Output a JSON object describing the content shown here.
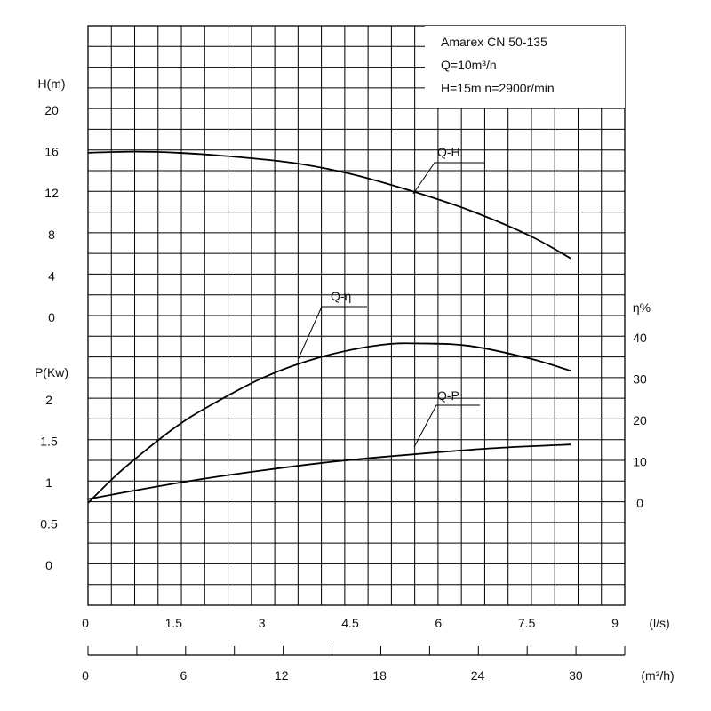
{
  "chart_data": {
    "type": "line",
    "title_lines": [
      "Amarex CN 50-135",
      "Q=10m³/h",
      "H=15m  n=2900r/min"
    ],
    "head_axis": {
      "label": "H(m)",
      "ticks": [
        "20",
        "16",
        "12",
        "8",
        "4",
        "0"
      ],
      "ylim": [
        0,
        20
      ]
    },
    "power_axis": {
      "label": "P(Kw)",
      "ticks": [
        "2",
        "1.5",
        "1",
        "0.5",
        "0"
      ],
      "ylim": [
        0,
        2
      ]
    },
    "eff_axis": {
      "label": "η%",
      "ticks": [
        "40",
        "30",
        "20",
        "10",
        "0"
      ],
      "ylim": [
        0,
        40
      ]
    },
    "x_axis_ls": {
      "unit": "(l/s)",
      "ticks": [
        "0",
        "1.5",
        "3",
        "4.5",
        "6",
        "7.5",
        "9"
      ],
      "xlim": [
        0,
        9
      ]
    },
    "x_axis_m3h": {
      "unit": "(m³/h)",
      "ticks": [
        "0",
        "6",
        "12",
        "18",
        "24",
        "30"
      ],
      "xlim": [
        0,
        32.4
      ]
    },
    "series": [
      {
        "name": "Q-H",
        "axis": "head",
        "x": [
          0,
          0.8,
          1.5,
          2.5,
          3.5,
          4.5,
          5.5,
          6.5,
          7.5,
          8.2
        ],
        "y": [
          15.9,
          16.0,
          15.9,
          15.5,
          14.9,
          13.8,
          12.2,
          10.3,
          7.9,
          5.7
        ]
      },
      {
        "name": "Q-η",
        "axis": "eff",
        "x": [
          0,
          0.5,
          1,
          1.5,
          2,
          3,
          4,
          5,
          5.7,
          6.5,
          7.5,
          8.2
        ],
        "y": [
          0,
          7,
          13,
          18.5,
          23,
          30.5,
          35.5,
          38.3,
          38.6,
          38,
          35,
          32
        ]
      },
      {
        "name": "Q-P",
        "axis": "power",
        "x": [
          0,
          1,
          2,
          3,
          4,
          5,
          6,
          7,
          8.2
        ],
        "y": [
          0.8,
          0.93,
          1.05,
          1.15,
          1.24,
          1.31,
          1.37,
          1.42,
          1.46
        ]
      }
    ]
  }
}
